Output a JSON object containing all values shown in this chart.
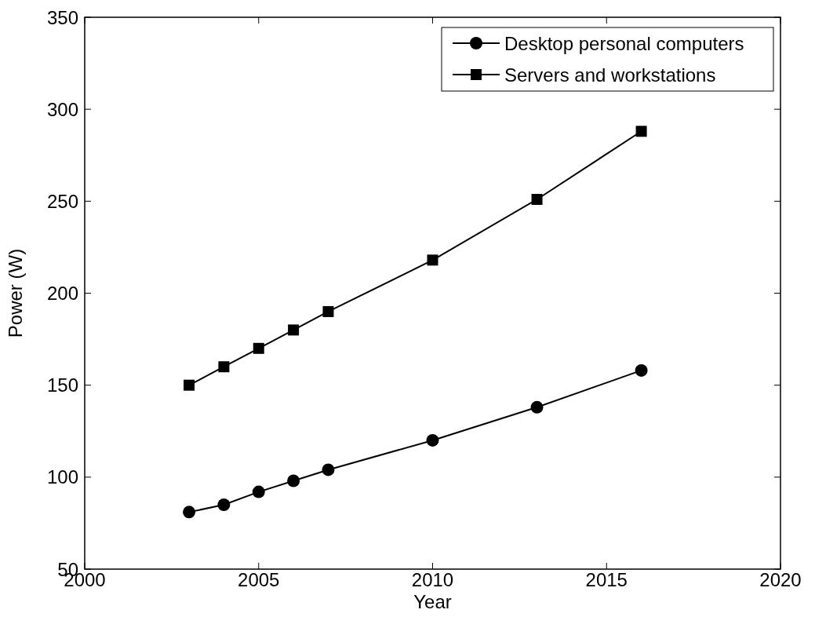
{
  "chart_data": {
    "type": "line",
    "xlabel": "Year",
    "ylabel": "Power (W)",
    "x": [
      2003,
      2004,
      2005,
      2006,
      2007,
      2010,
      2013,
      2016
    ],
    "series": [
      {
        "name": "Desktop personal computers",
        "color": "#000000",
        "marker": "circle",
        "values": [
          81,
          85,
          92,
          98,
          104,
          120,
          138,
          158
        ]
      },
      {
        "name": "Servers and workstations",
        "color": "#000000",
        "marker": "square",
        "values": [
          150,
          160,
          170,
          180,
          190,
          218,
          251,
          288
        ]
      }
    ],
    "xlim": [
      2000,
      2020
    ],
    "xticks": [
      2000,
      2005,
      2010,
      2015,
      2020
    ],
    "ylim": [
      50,
      350
    ],
    "yticks": [
      50,
      100,
      150,
      200,
      250,
      300,
      350
    ],
    "legend": "top right",
    "grid": false,
    "line_style": "solid"
  }
}
